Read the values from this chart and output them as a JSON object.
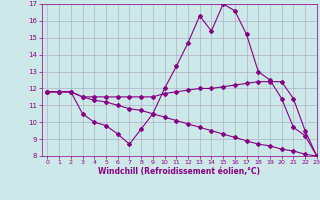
{
  "background_color": "#cce8e8",
  "grid_color": "#b0b0cc",
  "line_color": "#880088",
  "xlabel": "Windchill (Refroidissement éolien,°C)",
  "xlabel_color": "#880088",
  "tick_color": "#880088",
  "xlim": [
    -0.5,
    23
  ],
  "ylim": [
    8,
    17
  ],
  "yticks": [
    8,
    9,
    10,
    11,
    12,
    13,
    14,
    15,
    16,
    17
  ],
  "xticks": [
    0,
    1,
    2,
    3,
    4,
    5,
    6,
    7,
    8,
    9,
    10,
    11,
    12,
    13,
    14,
    15,
    16,
    17,
    18,
    19,
    20,
    21,
    22,
    23
  ],
  "line1_x": [
    0,
    1,
    2,
    3,
    4,
    5,
    6,
    7,
    8,
    9,
    10,
    11,
    12,
    13,
    14,
    15,
    16,
    17,
    18,
    19,
    20,
    21,
    22,
    23
  ],
  "line1_y": [
    11.8,
    11.8,
    11.8,
    11.5,
    11.5,
    11.5,
    11.5,
    11.5,
    11.5,
    11.5,
    11.7,
    11.8,
    11.9,
    12.0,
    12.0,
    12.1,
    12.2,
    12.3,
    12.4,
    12.4,
    12.4,
    11.4,
    9.5,
    8.0
  ],
  "line2_x": [
    0,
    1,
    2,
    3,
    4,
    5,
    6,
    7,
    8,
    9,
    10,
    11,
    12,
    13,
    14,
    15,
    16,
    17,
    18,
    19,
    20,
    21,
    22,
    23
  ],
  "line2_y": [
    11.8,
    11.8,
    11.8,
    10.5,
    10.0,
    9.8,
    9.3,
    8.7,
    9.6,
    10.5,
    12.0,
    13.3,
    14.7,
    16.3,
    15.4,
    17.0,
    16.6,
    15.2,
    13.0,
    12.5,
    11.4,
    9.7,
    9.2,
    8.0
  ],
  "line3_x": [
    0,
    1,
    2,
    3,
    4,
    5,
    6,
    7,
    8,
    9,
    10,
    11,
    12,
    13,
    14,
    15,
    16,
    17,
    18,
    19,
    20,
    21,
    22,
    23
  ],
  "line3_y": [
    11.8,
    11.8,
    11.8,
    11.5,
    11.3,
    11.2,
    11.0,
    10.8,
    10.7,
    10.5,
    10.3,
    10.1,
    9.9,
    9.7,
    9.5,
    9.3,
    9.1,
    8.9,
    8.7,
    8.6,
    8.4,
    8.3,
    8.1,
    8.0
  ]
}
